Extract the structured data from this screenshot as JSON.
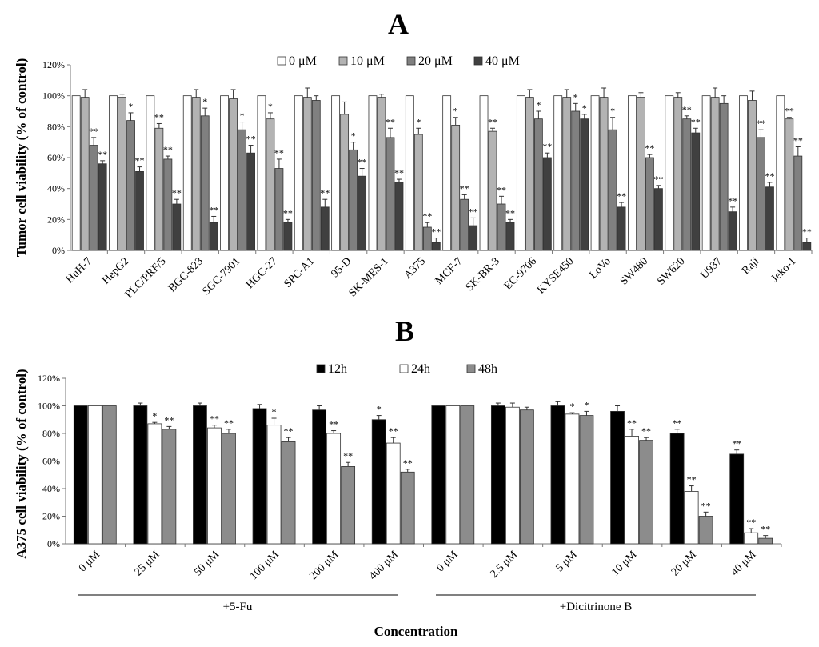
{
  "colors": {
    "s0": "#ffffff",
    "s10": "#b3b3b3",
    "s20": "#808080",
    "s40": "#404040",
    "t12": "#000000",
    "t24": "#ffffff",
    "t48": "#8c8c8c",
    "stroke": "#333333",
    "axis": "#777777"
  },
  "chart_data": [
    {
      "panel_label": "A",
      "type": "bar",
      "ylabel": "Tumor cell viability (% of control)",
      "ylim": [
        0,
        120
      ],
      "yticks": [
        0,
        20,
        40,
        60,
        80,
        100,
        120
      ],
      "ytick_labels": [
        "0%",
        "20%",
        "40%",
        "60%",
        "80%",
        "100%",
        "120%"
      ],
      "legend_position": "top-center",
      "categories": [
        "HuH-7",
        "HepG2",
        "PLC/PRF/5",
        "BGC-823",
        "SGC-7901",
        "HGC-27",
        "SPC-A1",
        "95-D",
        "SK-MES-1",
        "A375",
        "MCF-7",
        "SK-BR-3",
        "EC-9706",
        "KYSE450",
        "LoVo",
        "SW480",
        "SW620",
        "U937",
        "Raji",
        "Jeko-1"
      ],
      "series": [
        {
          "name": "0 μM",
          "values": [
            100,
            100,
            100,
            100,
            100,
            100,
            100,
            100,
            100,
            100,
            100,
            100,
            100,
            100,
            100,
            100,
            100,
            100,
            100,
            100
          ],
          "errors": [
            0,
            0,
            0,
            0,
            0,
            0,
            0,
            0,
            0,
            0,
            0,
            0,
            0,
            0,
            0,
            0,
            0,
            0,
            0,
            0
          ],
          "sig": [
            "",
            "",
            "",
            "",
            "",
            "",
            "",
            "",
            "",
            "",
            "",
            "",
            "",
            "",
            "",
            "",
            "",
            "",
            "",
            ""
          ]
        },
        {
          "name": "10 μM",
          "values": [
            99,
            99,
            79,
            99,
            98,
            85,
            99,
            88,
            99,
            75,
            81,
            77,
            99,
            99,
            99,
            99,
            99,
            99,
            97,
            85
          ],
          "errors": [
            5,
            2,
            3,
            5,
            6,
            4,
            6,
            8,
            2,
            4,
            5,
            2,
            5,
            5,
            6,
            3,
            3,
            6,
            6,
            1
          ],
          "sig": [
            "",
            "",
            "**",
            "",
            "",
            "*",
            "",
            "",
            "",
            "*",
            "*",
            "**",
            "",
            "",
            "",
            "",
            "",
            "",
            "",
            "**"
          ]
        },
        {
          "name": "20 μM",
          "values": [
            68,
            84,
            59,
            87,
            78,
            53,
            97,
            65,
            73,
            15,
            33,
            30,
            85,
            90,
            78,
            60,
            85,
            95,
            73,
            61
          ],
          "errors": [
            5,
            5,
            2,
            5,
            5,
            6,
            3,
            5,
            6,
            3,
            3,
            5,
            5,
            5,
            8,
            2,
            2,
            5,
            5,
            6
          ],
          "sig": [
            "**",
            "*",
            "**",
            "*",
            "*",
            "**",
            "",
            "*",
            "**",
            "**",
            "**",
            "**",
            "*",
            "*",
            "*",
            "**",
            "**",
            "",
            "**",
            "**"
          ]
        },
        {
          "name": "40 μM",
          "values": [
            56,
            51,
            30,
            18,
            63,
            18,
            28,
            48,
            44,
            5,
            16,
            18,
            60,
            85,
            28,
            40,
            76,
            25,
            41,
            5
          ],
          "errors": [
            2,
            3,
            3,
            4,
            5,
            2,
            5,
            5,
            2,
            3,
            5,
            2,
            3,
            3,
            3,
            2,
            3,
            3,
            3,
            3
          ],
          "sig": [
            "**",
            "**",
            "**",
            "**",
            "**",
            "**",
            "**",
            "**",
            "**",
            "**",
            "**",
            "**",
            "**",
            "*",
            "**",
            "**",
            "**",
            "**",
            "**",
            "**"
          ]
        }
      ]
    },
    {
      "panel_label": "B",
      "type": "bar",
      "ylabel": "A375 cell viability (% of control)",
      "xlabel": "Concentration",
      "ylim": [
        0,
        120
      ],
      "yticks": [
        0,
        20,
        40,
        60,
        80,
        100,
        120
      ],
      "ytick_labels": [
        "0%",
        "20%",
        "40%",
        "60%",
        "80%",
        "100%",
        "120%"
      ],
      "legend_position": "top-center",
      "categories": [
        "0 μM",
        "25 μM",
        "50 μM",
        "100 μM",
        "200 μM",
        "400 μM",
        "0 μM",
        "2.5 μM",
        "5 μM",
        "10 μM",
        "20 μM",
        "40 μM"
      ],
      "groups": [
        {
          "label": "+5-Fu",
          "start": 0,
          "end": 5
        },
        {
          "label": "+Dicitrinone B",
          "start": 6,
          "end": 11
        }
      ],
      "series": [
        {
          "name": "12h",
          "values": [
            100,
            100,
            100,
            98,
            97,
            90,
            100,
            100,
            100,
            96,
            80,
            65
          ],
          "errors": [
            0,
            2,
            2,
            3,
            3,
            3,
            0,
            2,
            3,
            4,
            3,
            3
          ],
          "sig": [
            "",
            "",
            "",
            "",
            "",
            "*",
            "",
            "",
            "",
            "",
            "**",
            "**"
          ]
        },
        {
          "name": "24h",
          "values": [
            100,
            87,
            84,
            86,
            80,
            73,
            100,
            99,
            94,
            78,
            38,
            8
          ],
          "errors": [
            0,
            1,
            2,
            5,
            2,
            4,
            0,
            3,
            1,
            5,
            4,
            3
          ],
          "sig": [
            "",
            "*",
            "**",
            "*",
            "**",
            "**",
            "",
            "",
            "*",
            "**",
            "**",
            "**"
          ]
        },
        {
          "name": "48h",
          "values": [
            100,
            83,
            80,
            74,
            56,
            52,
            100,
            97,
            93,
            75,
            20,
            4
          ],
          "errors": [
            0,
            2,
            3,
            3,
            3,
            2,
            0,
            2,
            3,
            2,
            3,
            2
          ],
          "sig": [
            "",
            "**",
            "**",
            "**",
            "**",
            "**",
            "",
            "",
            "*",
            "**",
            "**",
            "**"
          ]
        }
      ]
    }
  ]
}
